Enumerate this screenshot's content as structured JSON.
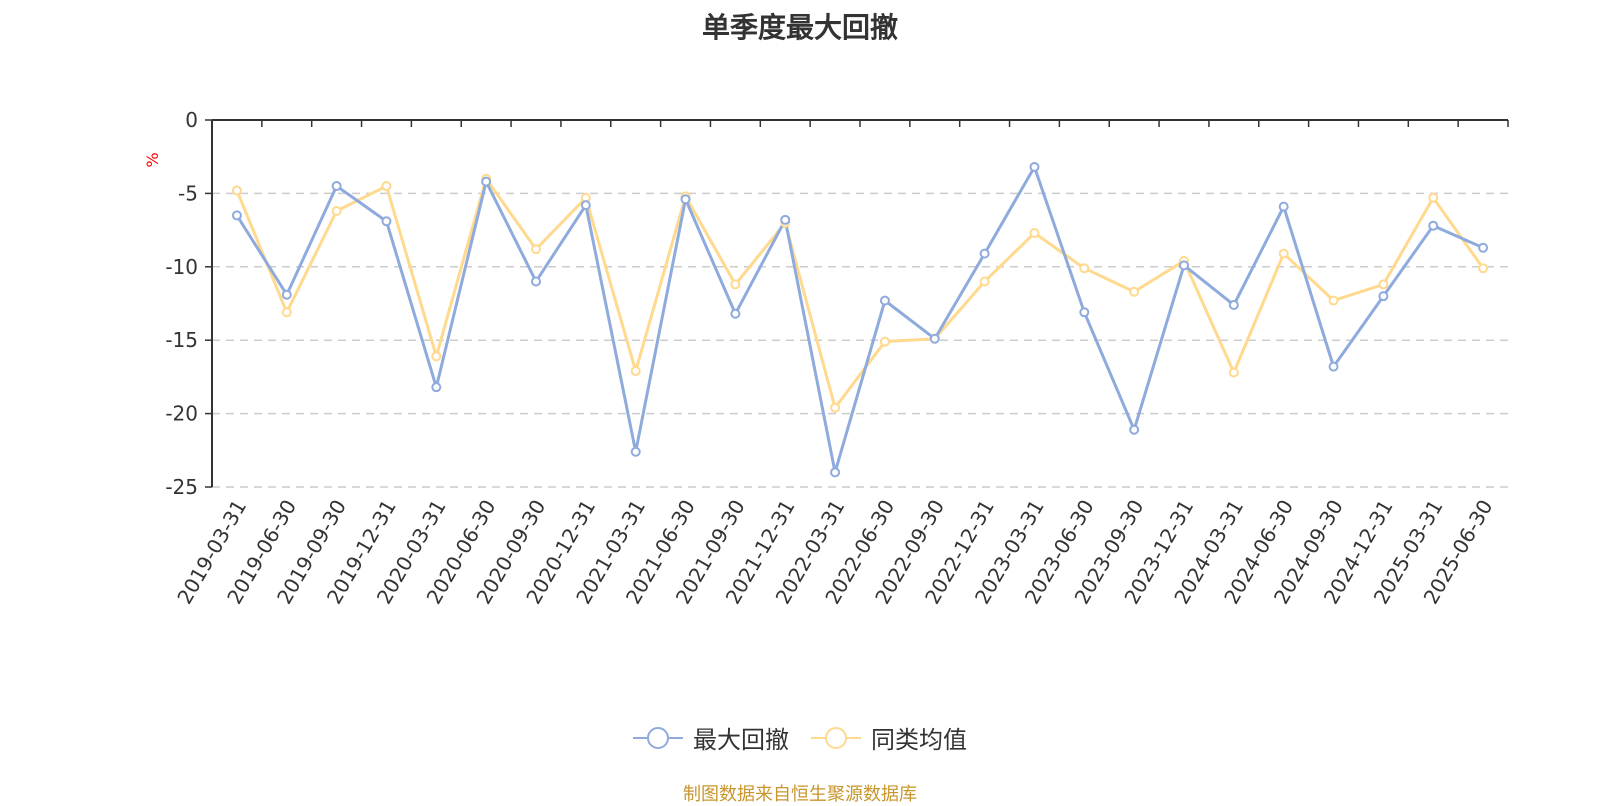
{
  "title": "单季度最大回撤",
  "source_note": "制图数据来自恒生聚源数据库",
  "y_unit": "%",
  "colors": {
    "series1": "#8faadc",
    "series2": "#ffd98e",
    "unit": "#ff0000",
    "source": "#c8962c"
  },
  "legend": [
    {
      "label": "最大回撤",
      "color": "#8faadc"
    },
    {
      "label": "同类均值",
      "color": "#ffd98e"
    }
  ],
  "chart_data": {
    "type": "line",
    "title": "单季度最大回撤",
    "ylabel": "%",
    "ylim": [
      -25,
      0
    ],
    "yticks": [
      0,
      -5,
      -10,
      -15,
      -20,
      -25
    ],
    "grid": "horizontal dashed",
    "legend_position": "bottom-center",
    "categories": [
      "2019-03-31",
      "2019-06-30",
      "2019-09-30",
      "2019-12-31",
      "2020-03-31",
      "2020-06-30",
      "2020-09-30",
      "2020-12-31",
      "2021-03-31",
      "2021-06-30",
      "2021-09-30",
      "2021-12-31",
      "2022-03-31",
      "2022-06-30",
      "2022-09-30",
      "2022-12-31",
      "2023-03-31",
      "2023-06-30",
      "2023-09-30",
      "2023-12-31",
      "2024-03-31",
      "2024-06-30",
      "2024-09-30",
      "2024-12-31",
      "2025-03-31",
      "2025-06-30"
    ],
    "series": [
      {
        "name": "最大回撤",
        "values": [
          -6.5,
          -11.9,
          -4.5,
          -6.9,
          -18.2,
          -4.2,
          -11.0,
          -5.8,
          -22.6,
          -5.4,
          -13.2,
          -6.8,
          -24.0,
          -12.3,
          -14.9,
          -9.1,
          -3.2,
          -13.1,
          -21.1,
          -9.9,
          -12.6,
          -5.9,
          -16.8,
          -12.0,
          -7.2,
          -8.7
        ]
      },
      {
        "name": "同类均值",
        "values": [
          -4.8,
          -13.1,
          -6.2,
          -4.5,
          -16.1,
          -4.0,
          -8.8,
          -5.3,
          -17.1,
          -5.2,
          -11.2,
          -7.0,
          -19.6,
          -15.1,
          -14.9,
          -11.0,
          -7.7,
          -10.1,
          -11.7,
          -9.6,
          -17.2,
          -9.1,
          -12.3,
          -11.2,
          -5.3,
          -10.1
        ]
      }
    ]
  }
}
